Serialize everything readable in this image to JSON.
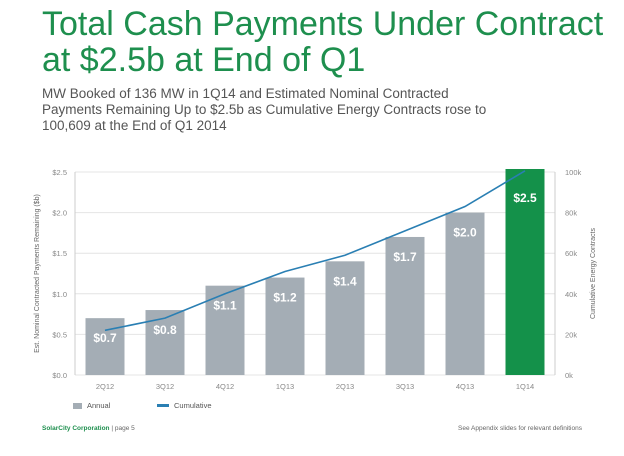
{
  "title": "Total Cash Payments Under Contract at $2.5b at End of Q1",
  "subtitle": "MW Booked of 136 MW in 1Q14 and Estimated Nominal Contracted Payments Remaining Up to $2.5b as Cumulative Energy Contracts rose to 100,609 at the End of Q1 2014",
  "footer": {
    "company": "SolarCity Corporation",
    "page": "| page 5",
    "note": "See Appendix slides for relevant definitions"
  },
  "colors": {
    "title": "#1e8f4e",
    "bar": "#a4adb5",
    "highlight_bar": "#14914a",
    "line": "#2a7fb3",
    "grid": "#e4e4e4"
  },
  "chart_data": {
    "type": "bar",
    "categories": [
      "2Q12",
      "3Q12",
      "4Q12",
      "1Q13",
      "2Q13",
      "3Q13",
      "4Q13",
      "1Q14"
    ],
    "series": [
      {
        "name": "Annual",
        "type": "bar",
        "axis": "left",
        "values": [
          0.7,
          0.8,
          1.1,
          1.2,
          1.4,
          1.7,
          2.0,
          2.5
        ],
        "labels": [
          "$0.7",
          "$0.8",
          "$1.1",
          "$1.2",
          "$1.4",
          "$1.7",
          "$2.0",
          "$2.5"
        ],
        "highlight_index": 7
      },
      {
        "name": "Cumulative",
        "type": "line",
        "axis": "right",
        "values": [
          22000,
          28000,
          40000,
          51000,
          59000,
          71000,
          83000,
          100609
        ]
      }
    ],
    "ylabel": "Est. Nominal Contracted Payments Remaining ($b)",
    "y2label": "Cumulative Energy Contracts",
    "ylim": [
      0,
      2.5
    ],
    "y2lim": [
      0,
      100000
    ],
    "yticks": [
      "$0.0",
      "$0.5",
      "$1.0",
      "$1.5",
      "$2.0",
      "$2.5"
    ],
    "y2ticks": [
      "0k",
      "20k",
      "40k",
      "60k",
      "80k",
      "100k"
    ],
    "grid": true,
    "legend": "bottom-left"
  }
}
